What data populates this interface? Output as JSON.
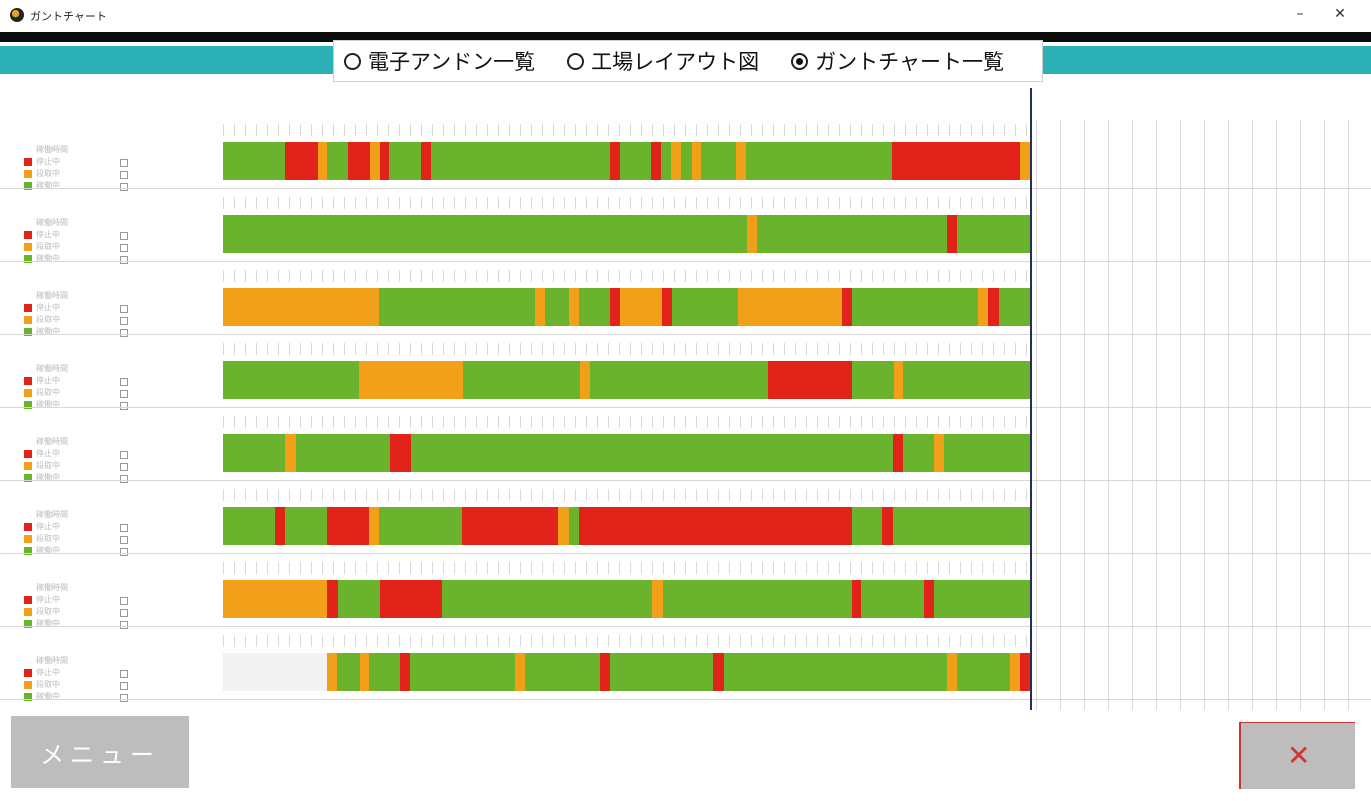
{
  "window": {
    "title": "ガントチャート",
    "minimize_label": "–",
    "close_label": "✕"
  },
  "header": {
    "radios": [
      {
        "label": "電子アンドン一覧",
        "selected": false
      },
      {
        "label": "工場レイアウト図",
        "selected": false
      },
      {
        "label": "ガントチャート一覧",
        "selected": true
      }
    ]
  },
  "legend_labels": {
    "row1": "稼働時間",
    "row2": "停止中",
    "row3": "段取中",
    "row4": "稼働中"
  },
  "colors": {
    "running": "#6ab42d",
    "setup": "#f2a01a",
    "stopped": "#e2231a",
    "teal": "#2bb0b6"
  },
  "chart_data": {
    "type": "gantt",
    "timeline_fraction_start": 0,
    "timeline_fraction_end": 1,
    "rows": [
      {
        "segments": [
          [
            "running",
            0,
            0.077
          ],
          [
            "stopped",
            0.077,
            0.117
          ],
          [
            "setup",
            0.117,
            0.129
          ],
          [
            "running",
            0.129,
            0.155
          ],
          [
            "stopped",
            0.155,
            0.182
          ],
          [
            "setup",
            0.182,
            0.194
          ],
          [
            "stopped",
            0.194,
            0.206
          ],
          [
            "running",
            0.206,
            0.245
          ],
          [
            "stopped",
            0.245,
            0.258
          ],
          [
            "running",
            0.258,
            0.479
          ],
          [
            "stopped",
            0.479,
            0.491
          ],
          [
            "running",
            0.491,
            0.53
          ],
          [
            "stopped",
            0.53,
            0.542
          ],
          [
            "running",
            0.542,
            0.555
          ],
          [
            "setup",
            0.555,
            0.567
          ],
          [
            "running",
            0.567,
            0.58
          ],
          [
            "setup",
            0.58,
            0.592
          ],
          [
            "running",
            0.592,
            0.635
          ],
          [
            "setup",
            0.635,
            0.647
          ],
          [
            "running",
            0.647,
            0.828
          ],
          [
            "stopped",
            0.828,
            0.987
          ],
          [
            "setup",
            0.987,
            1
          ]
        ]
      },
      {
        "segments": [
          [
            "running",
            0,
            0.649
          ],
          [
            "setup",
            0.649,
            0.661
          ],
          [
            "running",
            0.661,
            0.896
          ],
          [
            "stopped",
            0.896,
            0.908
          ],
          [
            "running",
            0.908,
            1
          ]
        ]
      },
      {
        "segments": [
          [
            "setup",
            0,
            0.193
          ],
          [
            "running",
            0.193,
            0.386
          ],
          [
            "setup",
            0.386,
            0.399
          ],
          [
            "running",
            0.399,
            0.428
          ],
          [
            "setup",
            0.428,
            0.44
          ],
          [
            "running",
            0.44,
            0.479
          ],
          [
            "stopped",
            0.479,
            0.491
          ],
          [
            "setup",
            0.491,
            0.543
          ],
          [
            "stopped",
            0.543,
            0.556
          ],
          [
            "running",
            0.556,
            0.637
          ],
          [
            "setup",
            0.637,
            0.766
          ],
          [
            "stopped",
            0.766,
            0.779
          ],
          [
            "running",
            0.779,
            0.935
          ],
          [
            "setup",
            0.935,
            0.947
          ],
          [
            "stopped",
            0.947,
            0.96
          ],
          [
            "running",
            0.96,
            1
          ]
        ]
      },
      {
        "segments": [
          [
            "running",
            0,
            0.168
          ],
          [
            "setup",
            0.168,
            0.297
          ],
          [
            "running",
            0.297,
            0.442
          ],
          [
            "setup",
            0.442,
            0.454
          ],
          [
            "running",
            0.454,
            0.675
          ],
          [
            "stopped",
            0.675,
            0.778
          ],
          [
            "running",
            0.778,
            0.83
          ],
          [
            "setup",
            0.83,
            0.842
          ],
          [
            "running",
            0.842,
            1
          ]
        ]
      },
      {
        "segments": [
          [
            "running",
            0,
            0.077
          ],
          [
            "setup",
            0.077,
            0.09
          ],
          [
            "running",
            0.09,
            0.207
          ],
          [
            "stopped",
            0.207,
            0.233
          ],
          [
            "running",
            0.233,
            0.829
          ],
          [
            "stopped",
            0.829,
            0.841
          ],
          [
            "running",
            0.841,
            0.88
          ],
          [
            "setup",
            0.88,
            0.892
          ],
          [
            "running",
            0.892,
            1
          ]
        ]
      },
      {
        "segments": [
          [
            "running",
            0,
            0.064
          ],
          [
            "stopped",
            0.064,
            0.077
          ],
          [
            "running",
            0.077,
            0.129
          ],
          [
            "stopped",
            0.129,
            0.181
          ],
          [
            "setup",
            0.181,
            0.193
          ],
          [
            "running",
            0.193,
            0.296
          ],
          [
            "stopped",
            0.296,
            0.415
          ],
          [
            "setup",
            0.415,
            0.428
          ],
          [
            "running",
            0.428,
            0.441
          ],
          [
            "stopped",
            0.441,
            0.778
          ],
          [
            "running",
            0.778,
            0.816
          ],
          [
            "stopped",
            0.816,
            0.829
          ],
          [
            "running",
            0.829,
            1
          ]
        ]
      },
      {
        "segments": [
          [
            "setup",
            0,
            0.129
          ],
          [
            "stopped",
            0.129,
            0.142
          ],
          [
            "running",
            0.142,
            0.194
          ],
          [
            "stopped",
            0.194,
            0.271
          ],
          [
            "running",
            0.271,
            0.531
          ],
          [
            "setup",
            0.531,
            0.544
          ],
          [
            "running",
            0.544,
            0.778
          ],
          [
            "stopped",
            0.778,
            0.79
          ],
          [
            "running",
            0.79,
            0.867
          ],
          [
            "stopped",
            0.867,
            0.88
          ],
          [
            "running",
            0.88,
            1
          ]
        ]
      },
      {
        "segments": [
          [
            "setup",
            0.129,
            0.141
          ],
          [
            "running",
            0.141,
            0.169
          ],
          [
            "setup",
            0.169,
            0.181
          ],
          [
            "running",
            0.181,
            0.219
          ],
          [
            "stopped",
            0.219,
            0.232
          ],
          [
            "running",
            0.232,
            0.362
          ],
          [
            "setup",
            0.362,
            0.374
          ],
          [
            "running",
            0.374,
            0.466
          ],
          [
            "stopped",
            0.466,
            0.479
          ],
          [
            "running",
            0.479,
            0.607
          ],
          [
            "stopped",
            0.607,
            0.62
          ],
          [
            "running",
            0.62,
            0.896
          ],
          [
            "setup",
            0.896,
            0.908
          ],
          [
            "running",
            0.908,
            0.974
          ],
          [
            "setup",
            0.974,
            0.986
          ],
          [
            "stopped",
            0.986,
            1
          ]
        ]
      }
    ]
  },
  "footer": {
    "menu_label": "メニュー",
    "corner_label": "✕"
  }
}
